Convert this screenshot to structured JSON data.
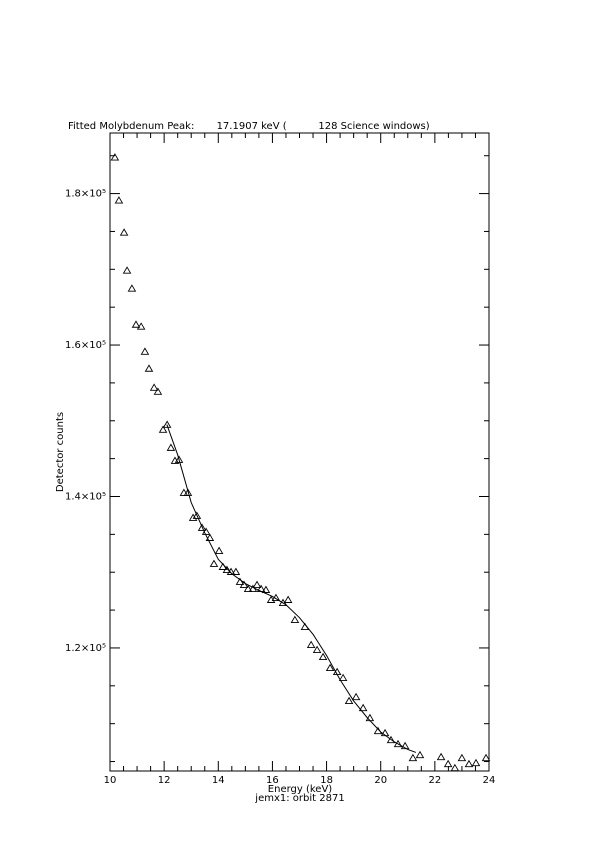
{
  "chart_data": {
    "type": "scatter",
    "title": "Fitted Molybdenum Peak:       17.1907 keV (          128 Science windows)",
    "xlabel": "Energy (keV)",
    "ylabel": "Detector counts",
    "subtitle": "jemx1: orbit 2871",
    "xlim": [
      10,
      24
    ],
    "ylim": [
      103750,
      188000
    ],
    "xticks": [
      10,
      12,
      14,
      16,
      18,
      20,
      22,
      24
    ],
    "xminorticks": [
      10.5,
      11,
      11.5,
      12.5,
      13,
      13.5,
      14.5,
      15,
      15.5,
      16.5,
      17,
      17.5,
      18.5,
      19,
      19.5,
      20.5,
      21,
      21.5,
      22.5,
      23,
      23.5
    ],
    "yticks": [
      {
        "value": 120000,
        "label": "1.2×10⁵"
      },
      {
        "value": 140000,
        "label": "1.4×10⁵"
      },
      {
        "value": 160000,
        "label": "1.6×10⁵"
      },
      {
        "value": 180000,
        "label": "1.8×10⁵"
      }
    ],
    "yminorticks": [
      105000,
      110000,
      115000,
      125000,
      130000,
      135000,
      145000,
      150000,
      155000,
      165000,
      170000,
      175000,
      185000
    ],
    "series": [
      {
        "type": "scatter",
        "color": "#000000",
        "x": [
          10.18,
          10.33,
          10.52,
          10.63,
          10.81,
          10.96,
          11.15,
          11.29,
          11.44,
          11.63,
          11.77,
          11.96,
          12.11,
          12.25,
          12.4,
          12.55,
          12.73,
          12.88,
          13.07,
          13.21,
          13.4,
          13.55,
          13.69,
          13.84,
          14.03,
          14.17,
          14.32,
          14.47,
          14.65,
          14.8,
          14.95,
          15.1,
          15.28,
          15.43,
          15.58,
          15.76,
          15.95,
          16.13,
          16.39,
          16.58,
          16.83,
          17.2,
          17.43,
          17.65,
          17.87,
          18.13,
          18.39,
          18.61,
          18.83,
          19.09,
          19.35,
          19.6,
          19.9,
          20.16,
          20.38,
          20.64,
          20.9,
          21.19,
          21.45,
          22.23,
          22.49,
          22.74,
          23.0,
          23.26,
          23.52,
          23.89
        ],
        "values": [
          184760,
          179080,
          174840,
          169820,
          167440,
          162680,
          162420,
          159110,
          156870,
          154350,
          153820,
          148800,
          149460,
          146420,
          144700,
          144830,
          140470,
          140470,
          137170,
          137430,
          135850,
          135320,
          134520,
          131090,
          132800,
          130690,
          130290,
          130030,
          130030,
          128710,
          128310,
          127780,
          127780,
          128310,
          127780,
          127650,
          126330,
          126590,
          125930,
          126330,
          123680,
          122760,
          120380,
          119720,
          118790,
          117340,
          116810,
          116020,
          112980,
          113500,
          112050,
          110730,
          109010,
          108740,
          107820,
          107290,
          107030,
          105440,
          105840,
          105580,
          104650,
          104120,
          105440,
          104650,
          104780,
          105440
        ]
      },
      {
        "type": "line",
        "color": "#000000",
        "x": [
          12.1,
          12.5,
          13.0,
          13.5,
          14.0,
          14.5,
          15.0,
          15.5,
          16.0,
          16.5,
          17.0,
          17.5,
          18.0,
          18.5,
          19.0,
          19.5,
          20.0,
          20.5,
          21.0,
          21.3
        ],
        "values": [
          149500,
          145500,
          139200,
          135200,
          131700,
          129800,
          128500,
          127600,
          126800,
          125700,
          124000,
          121800,
          119000,
          115800,
          113000,
          110800,
          108900,
          107600,
          106600,
          106200
        ]
      }
    ]
  }
}
